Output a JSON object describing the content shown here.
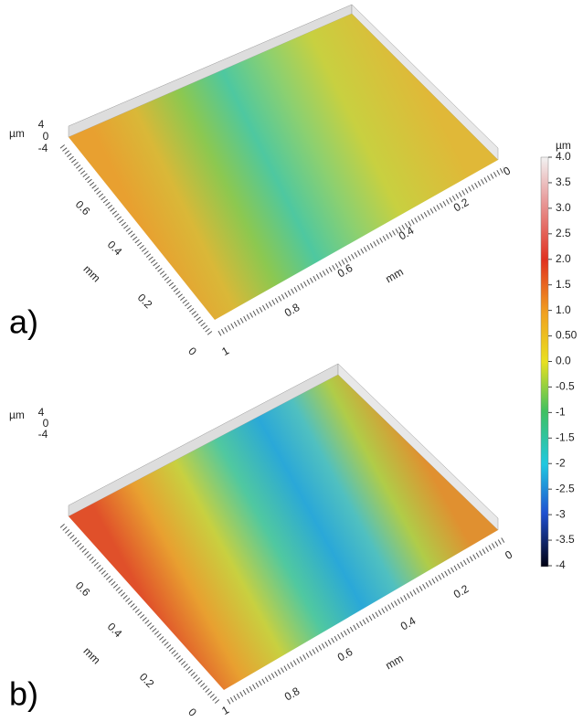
{
  "colorbar": {
    "unit": "µm",
    "ticks": [
      "4.0",
      "3.5",
      "3.0",
      "2.5",
      "2.0",
      "1.5",
      "1.0",
      "0.50",
      "0.0",
      "-0.5",
      "-1",
      "-1.5",
      "-2",
      "-2.5",
      "-3",
      "-3.5",
      "-4"
    ]
  },
  "panels": [
    {
      "label": "a)",
      "z_unit": "µm",
      "z_ticks": [
        "4",
        "0",
        "-4"
      ],
      "y_axis": {
        "unit": "mm",
        "ticks": [
          "0.6",
          "0.4",
          "0.2",
          "0"
        ]
      },
      "x_axis": {
        "unit": "mm",
        "ticks": [
          "0",
          "0.2",
          "0.4",
          "0.6",
          "0.8",
          "1"
        ]
      }
    },
    {
      "label": "b)",
      "z_unit": "µm",
      "z_ticks": [
        "4",
        "0",
        "-4"
      ],
      "y_axis": {
        "unit": "mm",
        "ticks": [
          "0.6",
          "0.4",
          "0.2",
          "0"
        ]
      },
      "x_axis": {
        "unit": "mm",
        "ticks": [
          "0",
          "0.2",
          "0.4",
          "0.6",
          "0.8",
          "1"
        ]
      }
    }
  ]
}
